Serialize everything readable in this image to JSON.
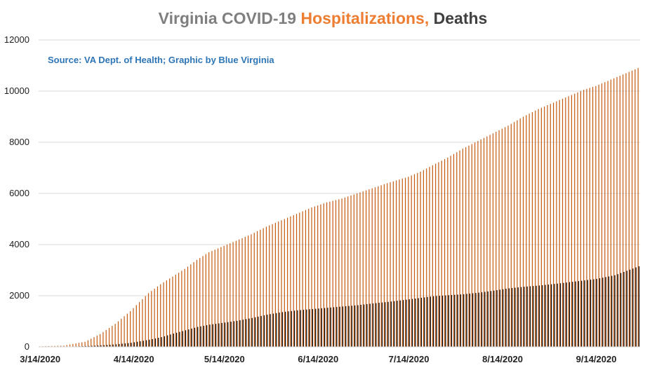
{
  "chart_data": {
    "type": "bar",
    "title_parts": [
      {
        "text": "Virginia COVID-19 ",
        "color": "#7f7f7f"
      },
      {
        "text": "Hospitalizations, ",
        "color": "#ed7d31"
      },
      {
        "text": "Deaths",
        "color": "#404040"
      }
    ],
    "annotation": "Source: VA Dept. of Health; Graphic by Blue Virginia",
    "annotation_color": "#2e75b6",
    "x_start": "3/14/2020",
    "x_end": "9/28/2020",
    "x_tick_labels": [
      "3/14/2020",
      "4/14/2020",
      "5/14/2020",
      "6/14/2020",
      "7/14/2020",
      "8/14/2020",
      "9/14/2020"
    ],
    "x_tick_days": [
      0,
      31,
      61,
      92,
      122,
      153,
      184
    ],
    "ylim": [
      0,
      12000
    ],
    "y_ticks": [
      0,
      2000,
      4000,
      6000,
      8000,
      10000,
      12000
    ],
    "grid": true,
    "legend": "none",
    "series": [
      {
        "color": "#c55a11",
        "points": [
          [
            0,
            20
          ],
          [
            8,
            50
          ],
          [
            15,
            200
          ],
          [
            20,
            500
          ],
          [
            25,
            900
          ],
          [
            30,
            1400
          ],
          [
            33,
            1750
          ],
          [
            36,
            2100
          ],
          [
            40,
            2450
          ],
          [
            44,
            2750
          ],
          [
            48,
            3050
          ],
          [
            52,
            3400
          ],
          [
            56,
            3700
          ],
          [
            61,
            3950
          ],
          [
            65,
            4150
          ],
          [
            70,
            4400
          ],
          [
            75,
            4700
          ],
          [
            80,
            4950
          ],
          [
            85,
            5200
          ],
          [
            90,
            5450
          ],
          [
            95,
            5650
          ],
          [
            100,
            5800
          ],
          [
            105,
            6000
          ],
          [
            110,
            6200
          ],
          [
            115,
            6400
          ],
          [
            122,
            6650
          ],
          [
            126,
            6850
          ],
          [
            130,
            7100
          ],
          [
            135,
            7400
          ],
          [
            140,
            7750
          ],
          [
            145,
            8050
          ],
          [
            150,
            8350
          ],
          [
            155,
            8650
          ],
          [
            160,
            9000
          ],
          [
            165,
            9300
          ],
          [
            170,
            9550
          ],
          [
            175,
            9800
          ],
          [
            180,
            10050
          ],
          [
            184,
            10200
          ],
          [
            190,
            10500
          ],
          [
            195,
            10750
          ],
          [
            198,
            10900
          ]
        ]
      },
      {
        "color": "#000000",
        "points": [
          [
            0,
            0
          ],
          [
            10,
            10
          ],
          [
            15,
            30
          ],
          [
            20,
            60
          ],
          [
            25,
            100
          ],
          [
            30,
            160
          ],
          [
            33,
            220
          ],
          [
            36,
            280
          ],
          [
            40,
            380
          ],
          [
            44,
            520
          ],
          [
            48,
            650
          ],
          [
            52,
            780
          ],
          [
            56,
            870
          ],
          [
            61,
            950
          ],
          [
            65,
            1020
          ],
          [
            70,
            1130
          ],
          [
            75,
            1260
          ],
          [
            80,
            1360
          ],
          [
            85,
            1430
          ],
          [
            90,
            1480
          ],
          [
            95,
            1530
          ],
          [
            100,
            1580
          ],
          [
            105,
            1630
          ],
          [
            110,
            1700
          ],
          [
            115,
            1760
          ],
          [
            122,
            1860
          ],
          [
            126,
            1920
          ],
          [
            130,
            1980
          ],
          [
            135,
            2020
          ],
          [
            140,
            2060
          ],
          [
            145,
            2120
          ],
          [
            150,
            2200
          ],
          [
            155,
            2290
          ],
          [
            160,
            2350
          ],
          [
            165,
            2400
          ],
          [
            170,
            2460
          ],
          [
            175,
            2530
          ],
          [
            180,
            2600
          ],
          [
            184,
            2660
          ],
          [
            190,
            2800
          ],
          [
            195,
            3020
          ],
          [
            198,
            3150
          ]
        ]
      }
    ]
  }
}
